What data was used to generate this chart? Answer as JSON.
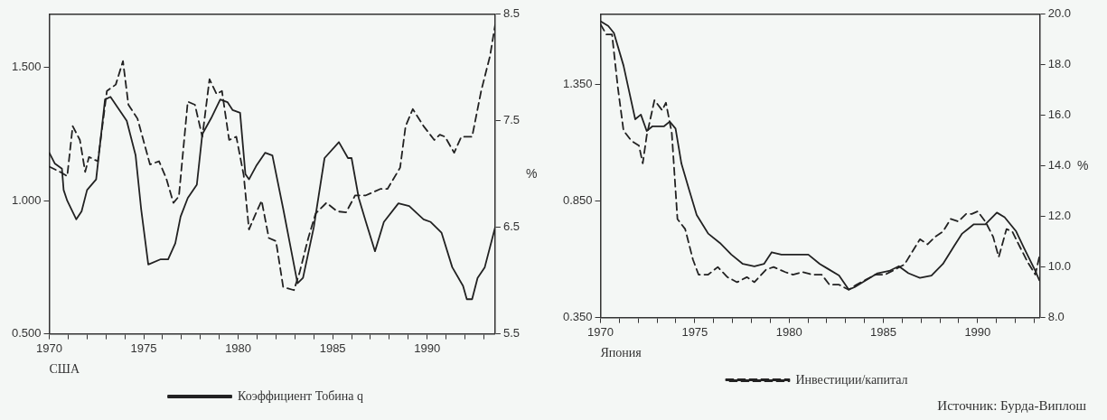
{
  "chart_data": [
    {
      "type": "line",
      "xlabel": "США",
      "y2label": "%",
      "legend": "bottom",
      "marker": "none",
      "grid": false,
      "xlim": [
        1970,
        1993.6
      ],
      "xticks": [
        1970,
        {
          "value": 1971,
          "label": null
        },
        {
          "value": 1972,
          "label": null
        },
        {
          "value": 1973,
          "label": null
        },
        {
          "value": 1974,
          "label": null
        },
        1975,
        {
          "value": 1976,
          "label": null
        },
        {
          "value": 1977,
          "label": null
        },
        {
          "value": 1978,
          "label": null
        },
        {
          "value": 1979,
          "label": null
        },
        1980,
        {
          "value": 1981,
          "label": null
        },
        {
          "value": 1982,
          "label": null
        },
        {
          "value": 1983,
          "label": null
        },
        {
          "value": 1984,
          "label": null
        },
        1985,
        {
          "value": 1986,
          "label": null
        },
        {
          "value": 1987,
          "label": null
        },
        {
          "value": 1988,
          "label": null
        },
        {
          "value": 1989,
          "label": null
        },
        1990,
        {
          "value": 1991,
          "label": null
        },
        {
          "value": 1992,
          "label": null
        },
        {
          "value": 1993,
          "label": null
        }
      ],
      "ylim": [
        0.5,
        1.7
      ],
      "yticks": [
        {
          "value": 0.5,
          "label": "0.500"
        },
        {
          "value": 1.0,
          "label": "1.000"
        },
        {
          "value": 1.5,
          "label": "1.500"
        }
      ],
      "y2lim": [
        5.5,
        8.5
      ],
      "y2ticks": [
        5.5,
        6.5,
        7.5,
        8.5
      ],
      "series": [
        {
          "name": "Коэффициент Тобина q",
          "color": "#222222",
          "line_style": "solid",
          "x": [
            1970.0,
            1970.29,
            1970.67,
            1970.76,
            1970.95,
            1971.43,
            1971.71,
            1972.0,
            1972.48,
            1972.95,
            1973.24,
            1973.62,
            1974.1,
            1974.57,
            1974.86,
            1975.24,
            1975.9,
            1976.29,
            1976.67,
            1976.95,
            1977.33,
            1977.81,
            1978.1,
            1978.57,
            1979.05,
            1979.43,
            1979.71,
            1980.1,
            1980.38,
            1980.57,
            1980.95,
            1981.43,
            1981.81,
            1982.38,
            1983.14,
            1983.43,
            1984.0,
            1984.57,
            1985.33,
            1985.81,
            1986.0,
            1986.38,
            1986.76,
            1987.24,
            1987.71,
            1988.48,
            1989.05,
            1989.81,
            1990.19,
            1990.76,
            1991.33,
            1991.9,
            1992.1,
            1992.38,
            1992.67,
            1993.05,
            1993.6
          ],
          "values": [
            1.18,
            1.14,
            1.12,
            1.04,
            1.0,
            0.93,
            0.96,
            1.04,
            1.08,
            1.38,
            1.39,
            1.35,
            1.3,
            1.17,
            0.97,
            0.76,
            0.78,
            0.78,
            0.84,
            0.94,
            1.01,
            1.06,
            1.25,
            1.31,
            1.38,
            1.37,
            1.34,
            1.33,
            1.1,
            1.08,
            1.13,
            1.18,
            1.17,
            0.97,
            0.69,
            0.71,
            0.9,
            1.16,
            1.22,
            1.16,
            1.16,
            1.01,
            0.92,
            0.81,
            0.92,
            0.99,
            0.98,
            0.93,
            0.92,
            0.88,
            0.75,
            0.68,
            0.63,
            0.63,
            0.71,
            0.75,
            0.9
          ]
        },
        {
          "color": "#222222",
          "line_style": "dashed",
          "axis": "y2",
          "x": [
            1970.0,
            1970.57,
            1970.95,
            1971.24,
            1971.62,
            1971.9,
            1972.1,
            1972.57,
            1973.05,
            1973.52,
            1973.9,
            1974.19,
            1974.67,
            1975.33,
            1975.81,
            1976.19,
            1976.57,
            1976.86,
            1977.33,
            1977.71,
            1978.1,
            1978.48,
            1978.86,
            1979.14,
            1979.52,
            1979.9,
            1980.29,
            1980.57,
            1980.86,
            1981.24,
            1981.62,
            1982.0,
            1982.38,
            1982.95,
            1983.24,
            1983.71,
            1984.1,
            1984.67,
            1985.24,
            1985.71,
            1986.19,
            1986.76,
            1987.52,
            1987.9,
            1988.57,
            1988.86,
            1989.24,
            1989.81,
            1990.38,
            1990.67,
            1990.95,
            1991.43,
            1991.81,
            1992.38,
            1992.86,
            1993.33,
            1993.6
          ],
          "values": [
            7.07,
            7.02,
            6.98,
            7.45,
            7.32,
            7.02,
            7.16,
            7.12,
            7.78,
            7.84,
            8.06,
            7.65,
            7.52,
            7.09,
            7.12,
            6.96,
            6.73,
            6.79,
            7.68,
            7.65,
            7.35,
            7.89,
            7.75,
            7.78,
            7.32,
            7.35,
            6.99,
            6.48,
            6.6,
            6.75,
            6.4,
            6.37,
            5.94,
            5.91,
            6.07,
            6.4,
            6.63,
            6.73,
            6.65,
            6.64,
            6.8,
            6.8,
            6.86,
            6.86,
            7.06,
            7.45,
            7.61,
            7.45,
            7.32,
            7.37,
            7.35,
            7.2,
            7.35,
            7.35,
            7.78,
            8.11,
            8.4
          ]
        }
      ]
    },
    {
      "type": "line",
      "xlabel": "Япония",
      "y2label": "%",
      "legend": "bottom",
      "marker": "none",
      "grid": false,
      "xlim": [
        1970,
        1993.3
      ],
      "xticks": [
        1970,
        {
          "value": 1971,
          "label": null
        },
        {
          "value": 1972,
          "label": null
        },
        {
          "value": 1973,
          "label": null
        },
        {
          "value": 1974,
          "label": null
        },
        1975,
        {
          "value": 1976,
          "label": null
        },
        {
          "value": 1977,
          "label": null
        },
        {
          "value": 1978,
          "label": null
        },
        {
          "value": 1979,
          "label": null
        },
        1980,
        {
          "value": 1981,
          "label": null
        },
        {
          "value": 1982,
          "label": null
        },
        {
          "value": 1983,
          "label": null
        },
        {
          "value": 1984,
          "label": null
        },
        1985,
        {
          "value": 1986,
          "label": null
        },
        {
          "value": 1987,
          "label": null
        },
        {
          "value": 1988,
          "label": null
        },
        {
          "value": 1989,
          "label": null
        },
        1990,
        {
          "value": 1991,
          "label": null
        },
        {
          "value": 1992,
          "label": null
        },
        {
          "value": 1993,
          "label": null
        }
      ],
      "ylim": [
        0.35,
        1.65
      ],
      "yticks": [
        {
          "value": 0.35,
          "label": "0.350"
        },
        {
          "value": 0.85,
          "label": "0.850"
        },
        {
          "value": 1.35,
          "label": "1.350"
        }
      ],
      "y2lim": [
        8,
        20
      ],
      "y2ticks": [
        {
          "value": 8,
          "label": "8.0"
        },
        {
          "value": 10,
          "label": "10.0"
        },
        {
          "value": 12,
          "label": "12.0"
        },
        {
          "value": 14,
          "label": "14.0"
        },
        {
          "value": 16,
          "label": "16.0"
        },
        {
          "value": 18,
          "label": "18.0"
        },
        {
          "value": 20,
          "label": "20.0"
        }
      ],
      "annotations": [
        "Источник: Бурда-Виплош"
      ],
      "series": [
        {
          "color": "#222222",
          "line_style": "solid",
          "x": [
            1970.0,
            1970.41,
            1970.71,
            1971.22,
            1971.84,
            1972.14,
            1972.45,
            1972.76,
            1973.37,
            1973.67,
            1973.98,
            1974.29,
            1974.69,
            1975.1,
            1975.71,
            1976.33,
            1976.94,
            1977.55,
            1978.16,
            1978.67,
            1979.08,
            1979.59,
            1980.0,
            1980.41,
            1981.02,
            1981.63,
            1982.04,
            1982.65,
            1983.16,
            1983.47,
            1984.08,
            1984.69,
            1985.31,
            1985.82,
            1986.33,
            1986.94,
            1987.55,
            1988.16,
            1988.78,
            1989.18,
            1989.49,
            1989.8,
            1990.41,
            1991.02,
            1991.43,
            1992.04,
            1992.45,
            1993.06,
            1993.27
          ],
          "values": [
            1.62,
            1.6,
            1.57,
            1.43,
            1.2,
            1.22,
            1.15,
            1.17,
            1.17,
            1.19,
            1.16,
            1.01,
            0.9,
            0.79,
            0.71,
            0.67,
            0.62,
            0.58,
            0.57,
            0.58,
            0.63,
            0.62,
            0.62,
            0.62,
            0.62,
            0.58,
            0.56,
            0.53,
            0.47,
            0.48,
            0.51,
            0.54,
            0.55,
            0.57,
            0.54,
            0.52,
            0.53,
            0.58,
            0.66,
            0.71,
            0.73,
            0.75,
            0.75,
            0.8,
            0.78,
            0.72,
            0.65,
            0.55,
            0.51
          ]
        },
        {
          "name": "Инвестиции/капитал",
          "color": "#222222",
          "line_style": "dashed",
          "axis": "y2",
          "x": [
            1970.0,
            1970.31,
            1970.61,
            1970.92,
            1971.22,
            1971.63,
            1972.04,
            1972.24,
            1972.45,
            1972.86,
            1973.27,
            1973.47,
            1973.78,
            1974.08,
            1974.49,
            1974.9,
            1975.2,
            1975.71,
            1976.22,
            1976.73,
            1977.24,
            1977.76,
            1978.16,
            1978.78,
            1979.18,
            1979.8,
            1980.2,
            1980.71,
            1981.22,
            1981.73,
            1982.14,
            1982.65,
            1983.16,
            1983.57,
            1984.08,
            1984.59,
            1985.1,
            1985.61,
            1986.12,
            1986.53,
            1986.94,
            1987.35,
            1987.76,
            1988.16,
            1988.57,
            1988.98,
            1989.39,
            1989.69,
            1990.0,
            1990.41,
            1990.82,
            1991.12,
            1991.53,
            1991.84,
            1992.24,
            1992.65,
            1993.06,
            1993.27
          ],
          "values": [
            19.6,
            19.2,
            19.2,
            17.1,
            15.4,
            15.0,
            14.8,
            14.1,
            15.2,
            16.6,
            16.2,
            16.5,
            15.3,
            11.9,
            11.5,
            10.3,
            9.7,
            9.7,
            10.0,
            9.6,
            9.4,
            9.6,
            9.4,
            9.9,
            10.0,
            9.8,
            9.7,
            9.8,
            9.7,
            9.7,
            9.3,
            9.3,
            9.1,
            9.3,
            9.5,
            9.7,
            9.7,
            9.9,
            10.1,
            10.6,
            11.1,
            10.9,
            11.2,
            11.4,
            11.9,
            11.8,
            12.1,
            12.1,
            12.2,
            11.8,
            11.2,
            10.4,
            11.5,
            11.4,
            10.8,
            10.2,
            9.7,
            10.4
          ]
        }
      ]
    }
  ]
}
